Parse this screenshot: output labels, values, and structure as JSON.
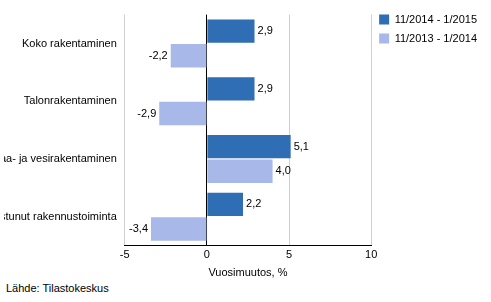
{
  "chart_data": {
    "type": "bar",
    "orientation": "horizontal",
    "categories": [
      "Koko rakentaminen",
      "Talonrakentaminen",
      "Maa- ja vesirakentaminen",
      "Erikoistunut rakennustoiminta"
    ],
    "series": [
      {
        "name": "11/2014 - 1/2015",
        "color": "#2f6db5",
        "values": [
          2.9,
          2.9,
          5.1,
          2.2
        ],
        "value_labels": [
          "2,9",
          "2,9",
          "5,1",
          "2,2"
        ]
      },
      {
        "name": "11/2013 - 1/2014",
        "color": "#a8b8e8",
        "values": [
          -2.2,
          -2.9,
          4.0,
          -3.4
        ],
        "value_labels": [
          "-2,2",
          "-2,9",
          "4,0",
          "-3,4"
        ]
      }
    ],
    "xlabel": "Vuosimuutos, %",
    "xlim": [
      -5,
      10
    ],
    "xticks": [
      -5,
      0,
      5,
      10
    ],
    "grid": true,
    "legend": "right",
    "data_labels": true,
    "source": "Lähde: Tilastokeskus"
  }
}
